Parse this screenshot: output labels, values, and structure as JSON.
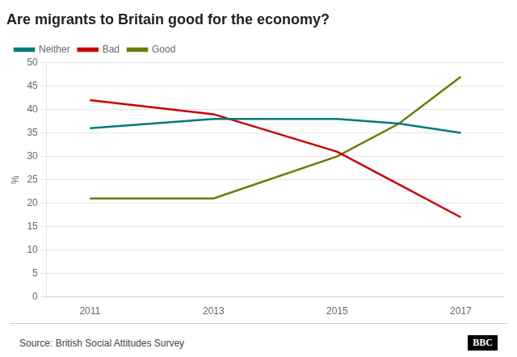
{
  "chart_data": {
    "type": "line",
    "title": "Are migrants to Britain good for the economy?",
    "ylabel": "%",
    "annotations": [
      "Source: British Social Attitudes Survey",
      "BBC"
    ],
    "x": [
      2011,
      2013,
      2015,
      2016,
      2017
    ],
    "series": [
      {
        "name": "Neither",
        "color": "#007a7a",
        "values": [
          36,
          38,
          38,
          37,
          35
        ]
      },
      {
        "name": "Bad",
        "color": "#cc0000",
        "values": [
          42,
          39,
          31,
          24,
          17
        ]
      },
      {
        "name": "Good",
        "color": "#6e7a00",
        "values": [
          21,
          21,
          30,
          37,
          47
        ]
      }
    ],
    "xlim": [
      2010.3,
      2017.7
    ],
    "xticks": [
      2011,
      2013,
      2015,
      2017
    ],
    "ylim": [
      0,
      50
    ],
    "yticks": [
      0,
      5,
      10,
      15,
      20,
      25,
      30,
      35,
      40,
      45,
      50
    ],
    "grid": true,
    "legend": "top"
  }
}
